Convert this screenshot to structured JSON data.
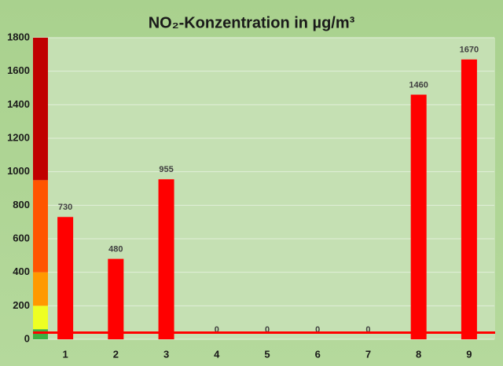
{
  "chart_data": {
    "type": "bar",
    "title": "NO₂-Konzentration in µg/m³",
    "categories": [
      "1",
      "2",
      "3",
      "4",
      "5",
      "6",
      "7",
      "8",
      "9"
    ],
    "values": [
      730,
      480,
      955,
      0,
      0,
      0,
      0,
      1460,
      1670
    ],
    "color": "#ff0000",
    "ylim": [
      0,
      1800
    ],
    "yticks": [
      0,
      200,
      400,
      600,
      800,
      1000,
      1200,
      1400,
      1600,
      1800
    ],
    "grid": true,
    "scale_bands": [
      {
        "from": 0,
        "to": 60,
        "color": "#3cb043"
      },
      {
        "from": 60,
        "to": 200,
        "color": "#eeff22"
      },
      {
        "from": 200,
        "to": 400,
        "color": "#ff9900"
      },
      {
        "from": 400,
        "to": 950,
        "color": "#ff5500"
      },
      {
        "from": 950,
        "to": 1800,
        "color": "#c00000"
      }
    ],
    "limit_line": {
      "value": 40,
      "color": "#ff0000"
    }
  }
}
